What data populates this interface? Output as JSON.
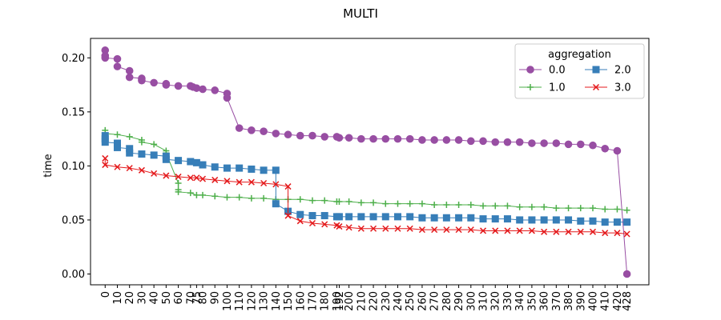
{
  "chart_data": {
    "type": "line",
    "title": "MULTI",
    "xlabel": "",
    "ylabel": "time",
    "ylim": [
      -0.01,
      0.218
    ],
    "xlim": [
      -12,
      446
    ],
    "yticks": [
      0.0,
      0.05,
      0.1,
      0.15,
      0.2
    ],
    "ytick_labels": [
      "0.00",
      "0.05",
      "0.10",
      "0.15",
      "0.20"
    ],
    "xticks": [
      0,
      10,
      20,
      30,
      40,
      50,
      60,
      70,
      75,
      80,
      90,
      100,
      110,
      120,
      130,
      140,
      150,
      160,
      170,
      180,
      190,
      192,
      200,
      210,
      220,
      230,
      240,
      250,
      260,
      270,
      280,
      290,
      300,
      310,
      320,
      330,
      340,
      350,
      360,
      370,
      380,
      390,
      400,
      410,
      420,
      428
    ],
    "xtick_labels": [
      "0",
      "10",
      "20",
      "30",
      "40",
      "50",
      "60",
      "70",
      "75",
      "80",
      "90",
      "100",
      "110",
      "120",
      "130",
      "140",
      "150",
      "160",
      "170",
      "180",
      "190",
      "192",
      "200",
      "210",
      "220",
      "230",
      "240",
      "250",
      "260",
      "270",
      "280",
      "290",
      "300",
      "310",
      "320",
      "330",
      "340",
      "350",
      "360",
      "370",
      "380",
      "390",
      "400",
      "410",
      "420",
      "428"
    ],
    "grid": false,
    "legend": {
      "title": "aggregation",
      "placement": "top-right",
      "columns": 2
    },
    "series": [
      {
        "name": "0.0",
        "color": "#984ea3",
        "marker": "circle",
        "x": [
          0,
          0,
          0,
          10,
          10,
          20,
          20,
          30,
          30,
          40,
          50,
          50,
          60,
          70,
          72,
          75,
          80,
          90,
          100,
          100,
          110,
          120,
          130,
          140,
          150,
          160,
          170,
          180,
          190,
          192,
          200,
          210,
          220,
          230,
          240,
          250,
          260,
          270,
          280,
          290,
          300,
          310,
          320,
          330,
          340,
          350,
          360,
          370,
          380,
          390,
          400,
          410,
          420,
          428
        ],
        "y": [
          0.207,
          0.202,
          0.2,
          0.199,
          0.192,
          0.188,
          0.182,
          0.181,
          0.179,
          0.177,
          0.176,
          0.175,
          0.174,
          0.174,
          0.173,
          0.172,
          0.171,
          0.17,
          0.167,
          0.163,
          0.135,
          0.133,
          0.132,
          0.13,
          0.129,
          0.128,
          0.128,
          0.127,
          0.127,
          0.126,
          0.126,
          0.125,
          0.125,
          0.125,
          0.125,
          0.125,
          0.124,
          0.124,
          0.124,
          0.124,
          0.123,
          0.123,
          0.122,
          0.122,
          0.122,
          0.121,
          0.121,
          0.121,
          0.12,
          0.12,
          0.119,
          0.116,
          0.114,
          0.0
        ]
      },
      {
        "name": "1.0",
        "color": "#4daf4a",
        "marker": "plus",
        "x": [
          0,
          0,
          10,
          20,
          30,
          30,
          40,
          50,
          50,
          60,
          60,
          60,
          70,
          75,
          80,
          90,
          100,
          110,
          120,
          130,
          140,
          150,
          160,
          170,
          180,
          190,
          192,
          200,
          210,
          220,
          230,
          240,
          250,
          260,
          270,
          280,
          290,
          300,
          310,
          320,
          330,
          340,
          350,
          360,
          370,
          380,
          390,
          400,
          410,
          420,
          428
        ],
        "y": [
          0.133,
          0.13,
          0.129,
          0.127,
          0.124,
          0.122,
          0.12,
          0.114,
          0.112,
          0.084,
          0.078,
          0.076,
          0.075,
          0.073,
          0.073,
          0.072,
          0.071,
          0.071,
          0.07,
          0.07,
          0.069,
          0.069,
          0.069,
          0.068,
          0.068,
          0.067,
          0.067,
          0.067,
          0.066,
          0.066,
          0.065,
          0.065,
          0.065,
          0.065,
          0.064,
          0.064,
          0.064,
          0.064,
          0.063,
          0.063,
          0.063,
          0.062,
          0.062,
          0.062,
          0.061,
          0.061,
          0.061,
          0.061,
          0.06,
          0.06,
          0.059
        ]
      },
      {
        "name": "2.0",
        "color": "#377eb8",
        "marker": "square",
        "x": [
          0,
          0,
          0,
          10,
          10,
          20,
          20,
          30,
          40,
          50,
          50,
          60,
          70,
          75,
          80,
          90,
          100,
          110,
          120,
          130,
          140,
          140,
          150,
          160,
          170,
          180,
          190,
          192,
          200,
          210,
          220,
          230,
          240,
          250,
          260,
          270,
          280,
          290,
          300,
          310,
          320,
          330,
          340,
          350,
          360,
          370,
          380,
          390,
          400,
          410,
          420,
          428
        ],
        "y": [
          0.128,
          0.125,
          0.122,
          0.121,
          0.117,
          0.116,
          0.112,
          0.111,
          0.11,
          0.109,
          0.106,
          0.105,
          0.104,
          0.103,
          0.101,
          0.099,
          0.098,
          0.098,
          0.097,
          0.096,
          0.096,
          0.065,
          0.058,
          0.055,
          0.054,
          0.054,
          0.053,
          0.053,
          0.053,
          0.053,
          0.053,
          0.053,
          0.053,
          0.053,
          0.052,
          0.052,
          0.052,
          0.052,
          0.052,
          0.051,
          0.051,
          0.051,
          0.05,
          0.05,
          0.05,
          0.05,
          0.05,
          0.049,
          0.049,
          0.048,
          0.048,
          0.048
        ]
      },
      {
        "name": "3.0",
        "color": "#e41a1c",
        "marker": "x",
        "x": [
          0,
          0,
          10,
          20,
          30,
          40,
          50,
          60,
          70,
          75,
          80,
          90,
          100,
          110,
          120,
          130,
          140,
          150,
          150,
          160,
          170,
          180,
          190,
          192,
          200,
          210,
          220,
          230,
          240,
          250,
          260,
          270,
          280,
          290,
          300,
          310,
          320,
          330,
          340,
          350,
          360,
          370,
          380,
          390,
          400,
          410,
          420,
          428
        ],
        "y": [
          0.107,
          0.101,
          0.099,
          0.098,
          0.096,
          0.093,
          0.091,
          0.09,
          0.089,
          0.089,
          0.088,
          0.087,
          0.086,
          0.085,
          0.085,
          0.084,
          0.083,
          0.081,
          0.054,
          0.049,
          0.047,
          0.046,
          0.045,
          0.044,
          0.043,
          0.042,
          0.042,
          0.042,
          0.042,
          0.042,
          0.041,
          0.041,
          0.041,
          0.041,
          0.041,
          0.04,
          0.04,
          0.04,
          0.04,
          0.04,
          0.039,
          0.039,
          0.039,
          0.039,
          0.039,
          0.038,
          0.038,
          0.037
        ]
      }
    ]
  }
}
